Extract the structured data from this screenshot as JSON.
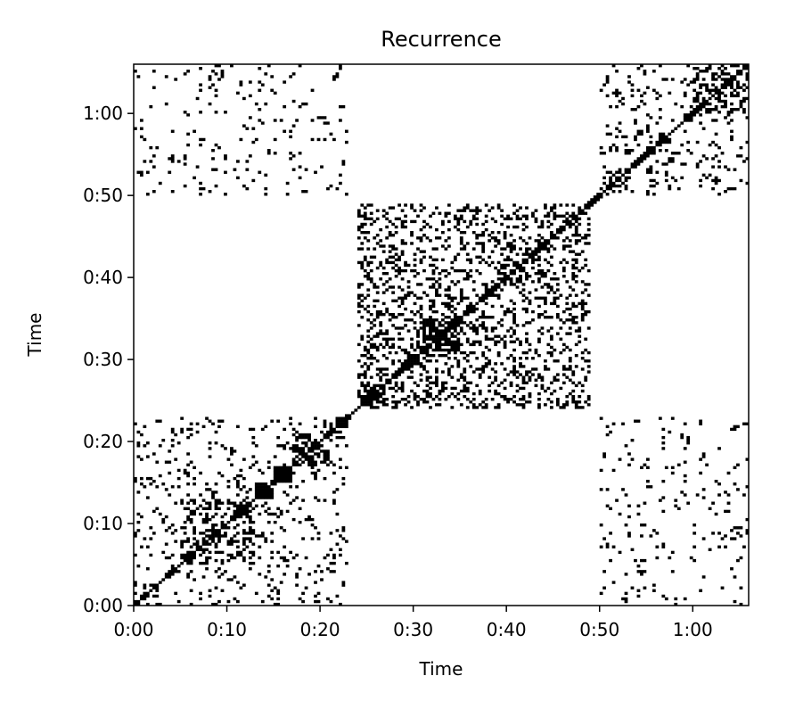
{
  "chart_data": {
    "type": "heatmap",
    "title": "Recurrence",
    "xlabel": "Time",
    "ylabel": "Time",
    "xlim": [
      "0:00",
      "1:06"
    ],
    "ylim": [
      "0:00",
      "1:06"
    ],
    "xticks": [
      "0:00",
      "0:10",
      "0:20",
      "0:30",
      "0:40",
      "0:50",
      "1:00"
    ],
    "yticks": [
      "0:00",
      "0:10",
      "0:20",
      "0:30",
      "0:40",
      "0:50",
      "1:00"
    ],
    "colormap": "binary",
    "colors": {
      "recurrent": "#000000",
      "non_recurrent": "#ffffff"
    },
    "grid": false,
    "symmetric": true,
    "main_diagonal": true,
    "blocks": [
      {
        "from": "0:00",
        "to": "0:03",
        "density": 0.3
      },
      {
        "from": "0:05",
        "to": "0:13",
        "density": 0.4
      },
      {
        "from": "0:13",
        "to": "0:15",
        "density": 0.85
      },
      {
        "from": "0:15",
        "to": "0:17",
        "density": 0.9
      },
      {
        "from": "0:17",
        "to": "0:21",
        "density": 0.55
      },
      {
        "from": "0:21",
        "to": "0:23",
        "density": 0.6
      },
      {
        "from": "0:24",
        "to": "0:27",
        "density": 0.55
      },
      {
        "from": "0:27",
        "to": "0:32",
        "density": 0.3
      },
      {
        "from": "0:31",
        "to": "0:35",
        "density": 0.75
      },
      {
        "from": "0:39",
        "to": "0:42",
        "density": 0.6
      },
      {
        "from": "0:43",
        "to": "0:49",
        "density": 0.35
      },
      {
        "from": "0:51",
        "to": "0:53",
        "density": 0.7
      },
      {
        "from": "0:59",
        "to": "1:00",
        "density": 0.9
      },
      {
        "from": "1:00",
        "to": "1:06",
        "density": 0.35
      }
    ],
    "off_diagonal_regions": [
      {
        "x": [
          "0:24",
          "0:49"
        ],
        "y": [
          "0:24",
          "0:49"
        ],
        "density": 0.25
      },
      {
        "x": [
          "0:00",
          "0:23"
        ],
        "y": [
          "0:00",
          "0:23"
        ],
        "density": 0.1
      },
      {
        "x": [
          "0:50",
          "1:06"
        ],
        "y": [
          "0:00",
          "0:23"
        ],
        "density": 0.06
      },
      {
        "x": [
          "0:00",
          "0:23"
        ],
        "y": [
          "0:50",
          "1:06"
        ],
        "density": 0.06
      },
      {
        "x": [
          "0:50",
          "1:06"
        ],
        "y": [
          "0:50",
          "1:06"
        ],
        "density": 0.12
      }
    ]
  }
}
